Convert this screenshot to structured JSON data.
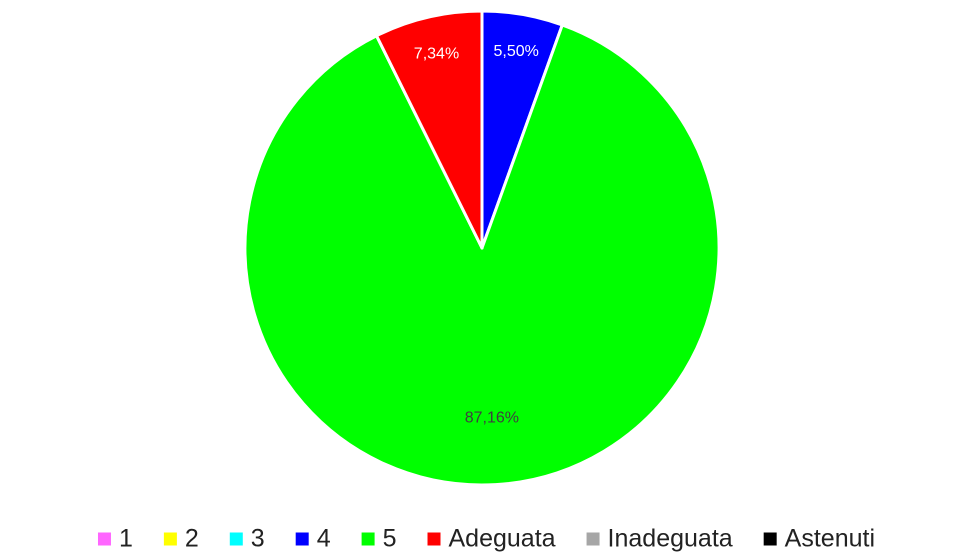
{
  "chart_data": {
    "type": "pie",
    "categories": [
      "1",
      "2",
      "3",
      "4",
      "5",
      "Adeguata",
      "Inadeguata",
      "Astenuti"
    ],
    "values": [
      0,
      0,
      0,
      5.5,
      87.16,
      7.34,
      0,
      0
    ],
    "value_labels": [
      null,
      null,
      null,
      "5,50%",
      "87,16%",
      "7,34%",
      null,
      null
    ],
    "colors": [
      "#ff66ff",
      "#ffff00",
      "#00ffff",
      "#0000ff",
      "#00ff00",
      "#ff0000",
      "#a6a6a6",
      "#000000"
    ],
    "legend": "bottom"
  }
}
